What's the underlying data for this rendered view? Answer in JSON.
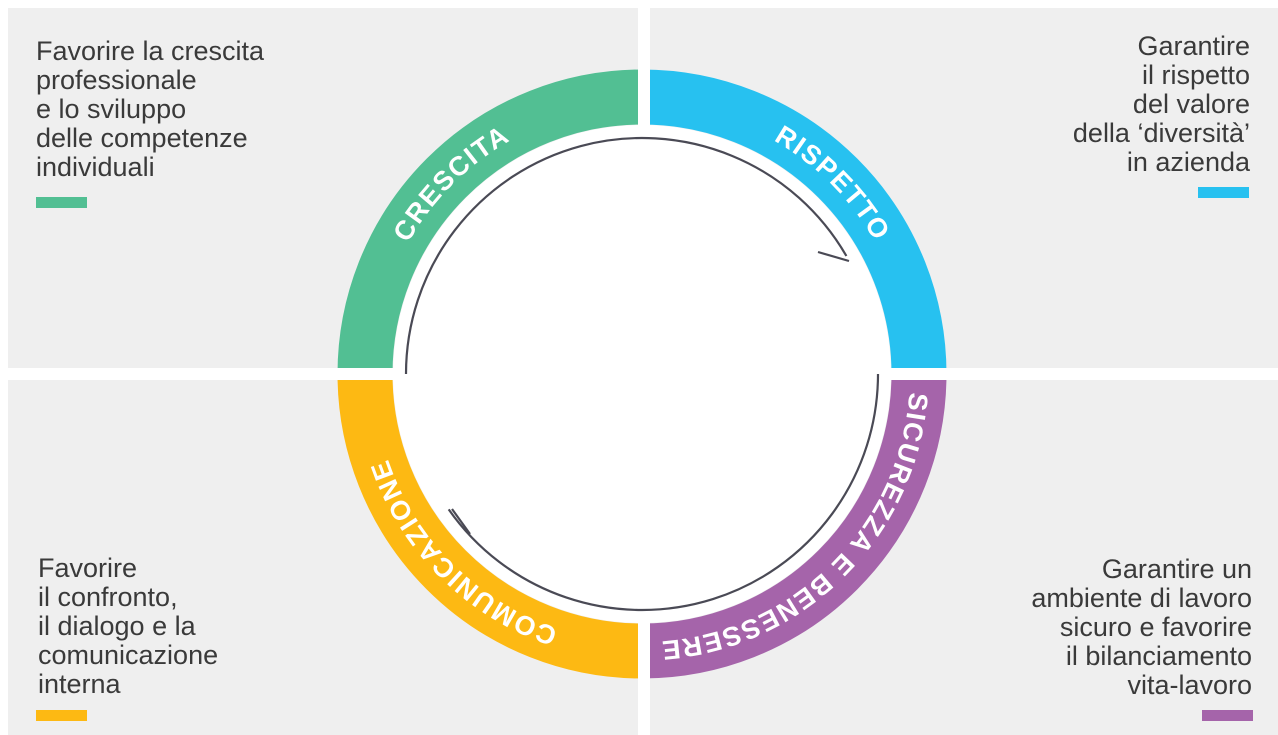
{
  "quadrants": [
    {
      "label": "CRESCITA",
      "lines": [
        "Favorire la crescita",
        "professionale",
        "e lo sviluppo",
        "delle competenze",
        "individuali"
      ]
    },
    {
      "label": "RISPETTO",
      "lines": [
        "Garantire",
        "il rispetto",
        "del valore",
        "della ‘diversità’",
        "in azienda"
      ]
    },
    {
      "label": "SICUREZZA E BENESSERE",
      "lines": [
        "Garantire un",
        "ambiente di lavoro",
        "sicuro e favorire",
        "il bilanciamento",
        "vita-lavoro"
      ]
    },
    {
      "label": "COMUNICAZIONE",
      "lines": [
        "Favorire",
        "il confronto,",
        "il dialogo e la",
        "comunicazione",
        "interna"
      ]
    }
  ]
}
